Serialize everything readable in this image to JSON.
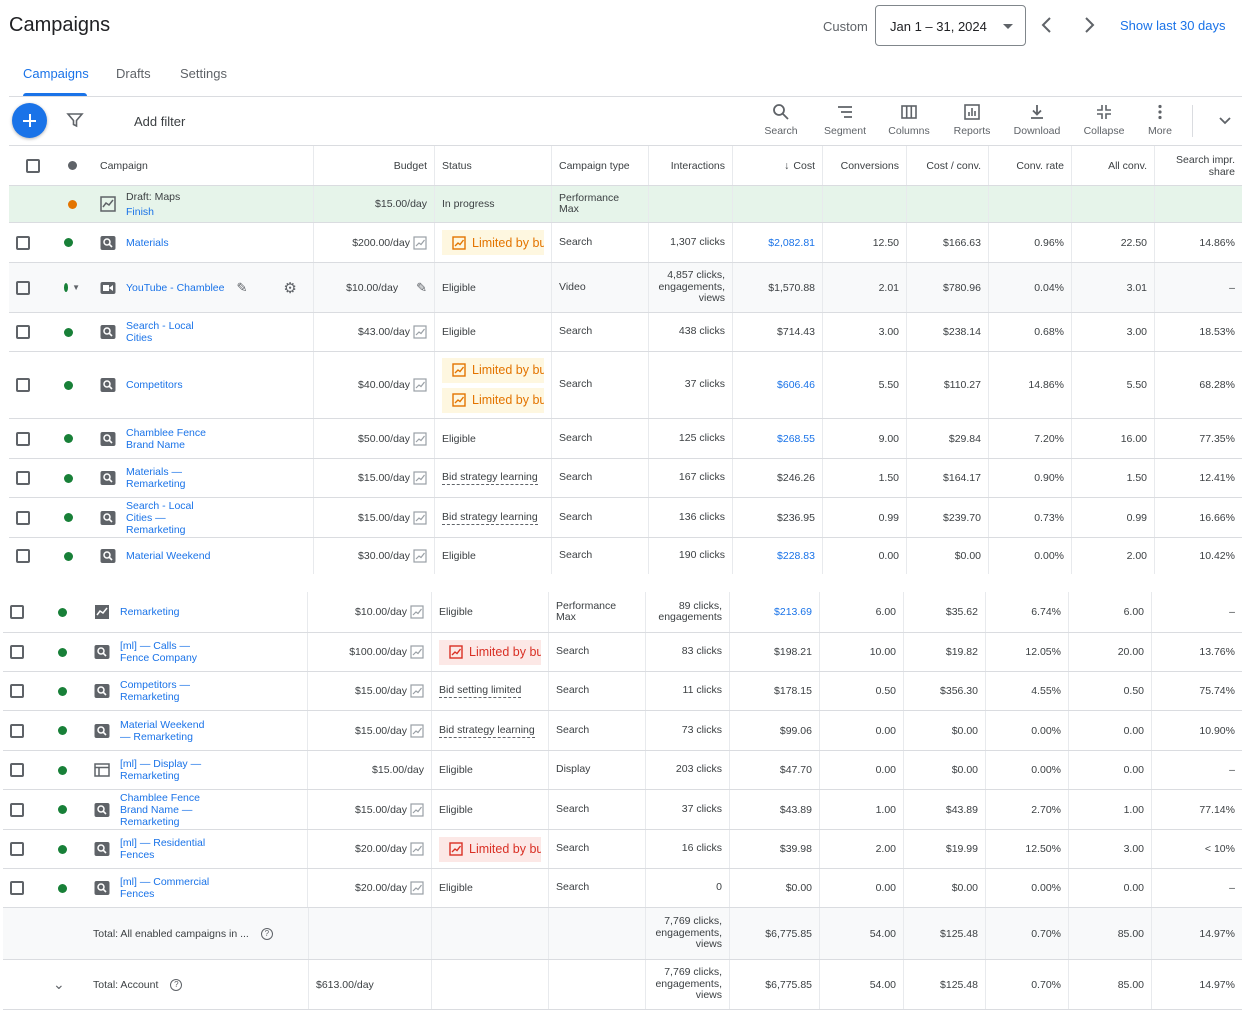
{
  "header": {
    "title": "Campaigns",
    "date_label": "Custom",
    "date_range": "Jan 1 – 31, 2024",
    "show_last": "Show last 30 days"
  },
  "tabs": [
    {
      "label": "Campaigns",
      "active": true
    },
    {
      "label": "Drafts",
      "active": false
    },
    {
      "label": "Settings",
      "active": false
    }
  ],
  "toolbar": {
    "add_filter": "Add filter",
    "tools": [
      {
        "label": "Search",
        "icon": "search-icon"
      },
      {
        "label": "Segment",
        "icon": "segment-icon"
      },
      {
        "label": "Columns",
        "icon": "columns-icon"
      },
      {
        "label": "Reports",
        "icon": "reports-icon"
      },
      {
        "label": "Download",
        "icon": "download-icon"
      },
      {
        "label": "Collapse",
        "icon": "collapse-icon"
      },
      {
        "label": "More",
        "icon": "more-vert-icon"
      }
    ]
  },
  "columns": {
    "campaign": "Campaign",
    "budget": "Budget",
    "status": "Status",
    "type": "Campaign type",
    "interactions": "Interactions",
    "cost": "Cost",
    "conversions": "Conversions",
    "cost_conv": "Cost / conv.",
    "conv_rate": "Conv. rate",
    "all_conv": "All conv.",
    "search_impr": "Search impr. share"
  },
  "draft_row": {
    "name": "Draft: Maps",
    "action": "Finish",
    "budget": "$15.00/day",
    "status": "In progress",
    "type": "Performance Max"
  },
  "rows": [
    {
      "name": "Materials",
      "budget": "$200.00/day",
      "status": "Limited by budget",
      "status_kind": "limited-orange",
      "type": "Search",
      "interactions": "1,307 clicks",
      "cost": "$2,082.81",
      "cost_link": true,
      "conversions": "12.50",
      "cost_conv": "$166.63",
      "conv_rate": "0.96%",
      "all_conv": "22.50",
      "search_impr": "14.86%"
    },
    {
      "name": "YouTube - Chamblee",
      "budget": "$10.00/day",
      "status": "Eligible",
      "status_kind": "plain",
      "type": "Video",
      "interactions": "4,857 clicks, engagements, views",
      "cost": "$1,570.88",
      "cost_link": false,
      "conversions": "2.01",
      "cost_conv": "$780.96",
      "conv_rate": "0.04%",
      "all_conv": "3.01",
      "search_impr": "–"
    },
    {
      "name": "Search - Local Cities",
      "budget": "$43.00/day",
      "status": "Eligible",
      "status_kind": "plain",
      "type": "Search",
      "interactions": "438 clicks",
      "cost": "$714.43",
      "cost_link": false,
      "conversions": "3.00",
      "cost_conv": "$238.14",
      "conv_rate": "0.68%",
      "all_conv": "3.00",
      "search_impr": "18.53%"
    },
    {
      "name": "Competitors",
      "budget": "$40.00/day",
      "status": "Limited by budget",
      "status2": "Limited by budget",
      "status_kind": "limited-orange-double",
      "type": "Search",
      "interactions": "37 clicks",
      "cost": "$606.46",
      "cost_link": true,
      "conversions": "5.50",
      "cost_conv": "$110.27",
      "conv_rate": "14.86%",
      "all_conv": "5.50",
      "search_impr": "68.28%"
    },
    {
      "name": "Chamblee Fence Brand Name",
      "budget": "$50.00/day",
      "status": "Eligible",
      "status_kind": "plain",
      "type": "Search",
      "interactions": "125 clicks",
      "cost": "$268.55",
      "cost_link": true,
      "conversions": "9.00",
      "cost_conv": "$29.84",
      "conv_rate": "7.20%",
      "all_conv": "16.00",
      "search_impr": "77.35%"
    },
    {
      "name": "Materials — Remarketing",
      "budget": "$15.00/day",
      "status": "Bid strategy learning",
      "status_kind": "dotted",
      "type": "Search",
      "interactions": "167 clicks",
      "cost": "$246.26",
      "cost_link": false,
      "conversions": "1.50",
      "cost_conv": "$164.17",
      "conv_rate": "0.90%",
      "all_conv": "1.50",
      "search_impr": "12.41%"
    },
    {
      "name": "Search - Local Cities — Remarketing",
      "budget": "$15.00/day",
      "status": "Bid strategy learning",
      "status_kind": "dotted",
      "type": "Search",
      "interactions": "136 clicks",
      "cost": "$236.95",
      "cost_link": false,
      "conversions": "0.99",
      "cost_conv": "$239.70",
      "conv_rate": "0.73%",
      "all_conv": "0.99",
      "search_impr": "16.66%"
    },
    {
      "name": "Material Weekend",
      "budget": "$30.00/day",
      "status": "Eligible",
      "status_kind": "plain",
      "type": "Search",
      "interactions": "190 clicks",
      "cost": "$228.83",
      "cost_link": true,
      "conversions": "0.00",
      "cost_conv": "$0.00",
      "conv_rate": "0.00%",
      "all_conv": "2.00",
      "search_impr": "10.42%"
    }
  ],
  "rows2": [
    {
      "name": "Remarketing",
      "budget": "$10.00/day",
      "status": "Eligible",
      "status_kind": "plain",
      "type": "Performance Max",
      "interactions": "89 clicks, engagements",
      "cost": "$213.69",
      "cost_link": true,
      "conversions": "6.00",
      "cost_conv": "$35.62",
      "conv_rate": "6.74%",
      "all_conv": "6.00",
      "search_impr": "–"
    },
    {
      "name": "[ml] — Calls — Fence Company",
      "budget": "$100.00/day",
      "status": "Limited by budget",
      "status_kind": "limited-red",
      "type": "Search",
      "interactions": "83 clicks",
      "cost": "$198.21",
      "cost_link": false,
      "conversions": "10.00",
      "cost_conv": "$19.82",
      "conv_rate": "12.05%",
      "all_conv": "20.00",
      "search_impr": "13.76%"
    },
    {
      "name": "Competitors — Remarketing",
      "budget": "$15.00/day",
      "status": "Bid setting limited",
      "status_kind": "dotted",
      "type": "Search",
      "interactions": "11 clicks",
      "cost": "$178.15",
      "cost_link": false,
      "conversions": "0.50",
      "cost_conv": "$356.30",
      "conv_rate": "4.55%",
      "all_conv": "0.50",
      "search_impr": "75.74%"
    },
    {
      "name": "Material Weekend — Remarketing",
      "budget": "$15.00/day",
      "status": "Bid strategy learning",
      "status_kind": "dotted",
      "type": "Search",
      "interactions": "73 clicks",
      "cost": "$99.06",
      "cost_link": false,
      "conversions": "0.00",
      "cost_conv": "$0.00",
      "conv_rate": "0.00%",
      "all_conv": "0.00",
      "search_impr": "10.90%"
    },
    {
      "name": "[ml] — Display — Remarketing",
      "budget": "$15.00/day",
      "status": "Eligible",
      "status_kind": "plain",
      "type": "Display",
      "interactions": "203 clicks",
      "cost": "$47.70",
      "cost_link": false,
      "conversions": "0.00",
      "cost_conv": "$0.00",
      "conv_rate": "0.00%",
      "all_conv": "0.00",
      "search_impr": "–"
    },
    {
      "name": "Chamblee Fence Brand Name — Remarketing",
      "budget": "$15.00/day",
      "status": "Eligible",
      "status_kind": "plain",
      "type": "Search",
      "interactions": "37 clicks",
      "cost": "$43.89",
      "cost_link": false,
      "conversions": "1.00",
      "cost_conv": "$43.89",
      "conv_rate": "2.70%",
      "all_conv": "1.00",
      "search_impr": "77.14%"
    },
    {
      "name": "[ml] — Residential Fences",
      "budget": "$20.00/day",
      "status": "Limited by budget",
      "status_kind": "limited-red",
      "type": "Search",
      "interactions": "16 clicks",
      "cost": "$39.98",
      "cost_link": false,
      "conversions": "2.00",
      "cost_conv": "$19.99",
      "conv_rate": "12.50%",
      "all_conv": "3.00",
      "search_impr": "< 10%"
    },
    {
      "name": "[ml] — Commercial Fences",
      "budget": "$20.00/day",
      "status": "Eligible",
      "status_kind": "plain",
      "type": "Search",
      "interactions": "0",
      "cost": "$0.00",
      "cost_link": false,
      "conversions": "0.00",
      "cost_conv": "$0.00",
      "conv_rate": "0.00%",
      "all_conv": "0.00",
      "search_impr": "–"
    }
  ],
  "totals": [
    {
      "label": "Total: All enabled campaigns in ...",
      "budget": "",
      "interactions": "7,769 clicks, engagements, views",
      "cost": "$6,775.85",
      "conversions": "54.00",
      "cost_conv": "$125.48",
      "conv_rate": "0.70%",
      "all_conv": "85.00",
      "search_impr": "14.97%"
    },
    {
      "label": "Total: Account",
      "budget": "$613.00/day",
      "interactions": "7,769 clicks, engagements, views",
      "cost": "$6,775.85",
      "conversions": "54.00",
      "cost_conv": "$125.48",
      "conv_rate": "0.70%",
      "all_conv": "85.00",
      "search_impr": "14.97%"
    }
  ],
  "colors": {
    "accent": "#1a73e8",
    "enabled": "#188038",
    "limited_red": "#d93025",
    "limited_orange": "#e37400",
    "draft_bg": "#e6f4ea"
  }
}
